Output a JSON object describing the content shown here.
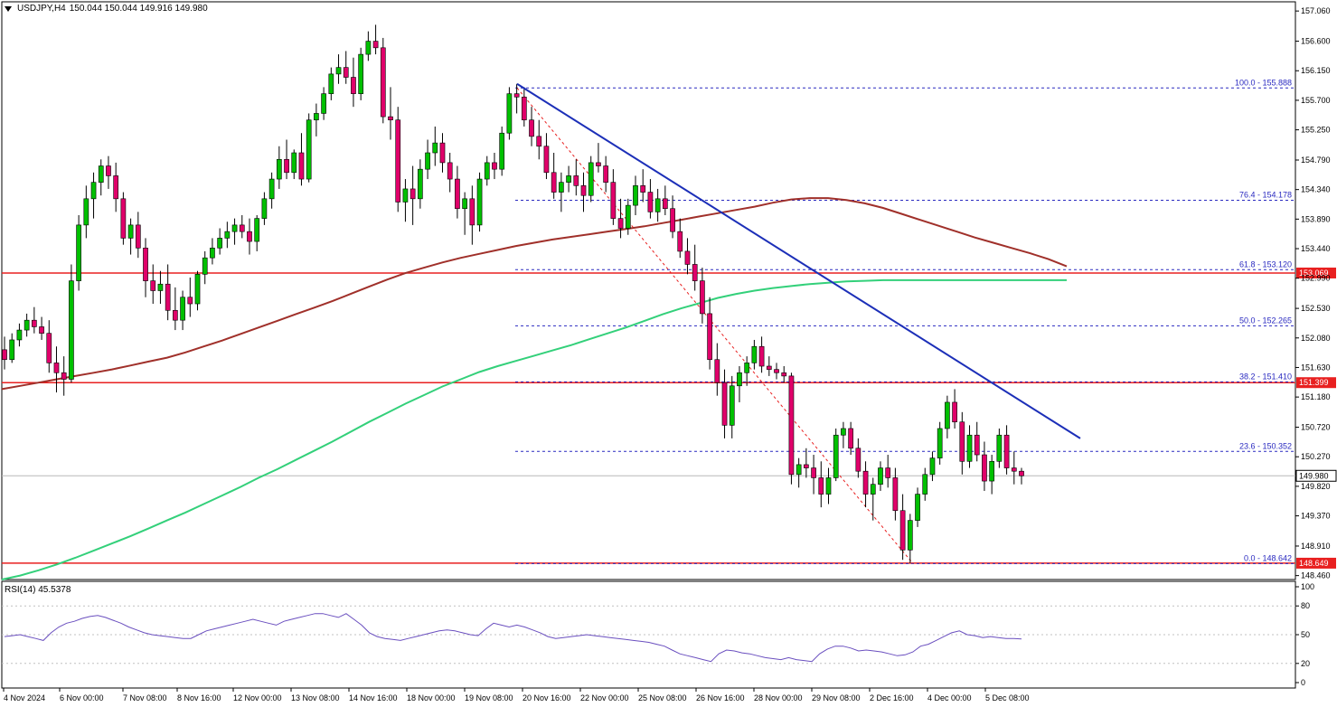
{
  "header": {
    "symbol": "USDJPY,H4",
    "ohlc": "150.044 150.044 149.916 149.980"
  },
  "rsi": {
    "label": "RSI(14) 45.5378",
    "ticks": [
      "100",
      "80",
      "50",
      "20",
      "0"
    ]
  },
  "colors": {
    "bull": "#00c000",
    "bear": "#e0006a",
    "ma_fast": "#a0302a",
    "ma_slow": "#33d07a",
    "trendline": "#1c2fb8",
    "fib": "#2a2ac0",
    "level": "#e82020",
    "rsi": "#6a4fbf"
  },
  "chart_data": {
    "type": "candlestick",
    "y_ticks": [
      "157.060",
      "156.600",
      "156.150",
      "155.700",
      "155.250",
      "154.790",
      "154.340",
      "153.890",
      "153.440",
      "152.990",
      "152.530",
      "152.080",
      "151.630",
      "151.180",
      "150.720",
      "150.270",
      "149.820",
      "149.370",
      "148.910",
      "148.460"
    ],
    "ylim": [
      148.4,
      157.2
    ],
    "x_ticks": [
      "4 Nov 2024",
      "6 Nov 00:00",
      "7 Nov 08:00",
      "8 Nov 16:00",
      "12 Nov 00:00",
      "13 Nov 08:00",
      "14 Nov 16:00",
      "18 Nov 00:00",
      "19 Nov 08:00",
      "20 Nov 16:00",
      "22 Nov 00:00",
      "25 Nov 08:00",
      "26 Nov 16:00",
      "28 Nov 00:00",
      "29 Nov 08:00",
      "2 Dec 16:00",
      "4 Dec 00:00",
      "5 Dec 08:00"
    ],
    "candles": [
      [
        151.9,
        152.1,
        151.6,
        151.75
      ],
      [
        151.75,
        152.15,
        151.7,
        152.05
      ],
      [
        152.05,
        152.3,
        151.95,
        152.2
      ],
      [
        152.2,
        152.45,
        152.1,
        152.35
      ],
      [
        152.35,
        152.55,
        152.15,
        152.25
      ],
      [
        152.25,
        152.4,
        152.05,
        152.15
      ],
      [
        152.15,
        152.35,
        151.55,
        151.7
      ],
      [
        151.7,
        151.95,
        151.25,
        151.55
      ],
      [
        151.55,
        151.8,
        151.2,
        151.45
      ],
      [
        151.45,
        153.2,
        151.4,
        152.95
      ],
      [
        152.95,
        153.95,
        152.8,
        153.8
      ],
      [
        153.8,
        154.4,
        153.6,
        154.2
      ],
      [
        154.2,
        154.6,
        153.9,
        154.45
      ],
      [
        154.45,
        154.8,
        154.25,
        154.7
      ],
      [
        154.7,
        154.85,
        154.35,
        154.55
      ],
      [
        154.55,
        154.75,
        154.0,
        154.2
      ],
      [
        154.2,
        154.3,
        153.5,
        153.6
      ],
      [
        153.6,
        153.9,
        153.35,
        153.8
      ],
      [
        153.8,
        154.0,
        153.3,
        153.45
      ],
      [
        153.45,
        153.6,
        152.7,
        152.95
      ],
      [
        152.95,
        153.2,
        152.6,
        152.8
      ],
      [
        152.8,
        153.1,
        152.6,
        152.9
      ],
      [
        152.9,
        153.2,
        152.35,
        152.5
      ],
      [
        152.5,
        152.85,
        152.2,
        152.35
      ],
      [
        152.35,
        152.8,
        152.2,
        152.7
      ],
      [
        152.7,
        153.0,
        152.4,
        152.6
      ],
      [
        152.6,
        153.1,
        152.5,
        153.05
      ],
      [
        153.05,
        153.4,
        152.9,
        153.3
      ],
      [
        153.3,
        153.6,
        153.2,
        153.45
      ],
      [
        153.45,
        153.75,
        153.35,
        153.6
      ],
      [
        153.6,
        153.85,
        153.45,
        153.7
      ],
      [
        153.7,
        153.9,
        153.5,
        153.8
      ],
      [
        153.8,
        153.95,
        153.6,
        153.7
      ],
      [
        153.7,
        153.9,
        153.35,
        153.55
      ],
      [
        153.55,
        153.95,
        153.4,
        153.9
      ],
      [
        153.9,
        154.3,
        153.8,
        154.2
      ],
      [
        154.2,
        154.6,
        154.05,
        154.5
      ],
      [
        154.5,
        155.0,
        154.35,
        154.8
      ],
      [
        154.8,
        155.1,
        154.5,
        154.6
      ],
      [
        154.6,
        154.95,
        154.5,
        154.9
      ],
      [
        154.9,
        155.2,
        154.4,
        154.5
      ],
      [
        154.5,
        155.5,
        154.45,
        155.4
      ],
      [
        155.4,
        155.65,
        155.15,
        155.5
      ],
      [
        155.5,
        155.9,
        155.4,
        155.8
      ],
      [
        155.8,
        156.2,
        155.7,
        156.1
      ],
      [
        156.1,
        156.4,
        155.95,
        156.2
      ],
      [
        156.2,
        156.45,
        155.95,
        156.05
      ],
      [
        156.05,
        156.35,
        155.6,
        155.8
      ],
      [
        155.8,
        156.5,
        155.7,
        156.4
      ],
      [
        156.4,
        156.75,
        156.3,
        156.6
      ],
      [
        156.6,
        156.85,
        156.4,
        156.5
      ],
      [
        156.5,
        156.65,
        155.35,
        155.45
      ],
      [
        155.45,
        155.9,
        155.1,
        155.4
      ],
      [
        155.4,
        155.6,
        154.0,
        154.15
      ],
      [
        154.15,
        154.5,
        153.85,
        154.35
      ],
      [
        154.35,
        154.7,
        153.8,
        154.2
      ],
      [
        154.2,
        154.8,
        154.05,
        154.65
      ],
      [
        154.65,
        155.1,
        154.5,
        154.9
      ],
      [
        154.9,
        155.3,
        154.7,
        155.05
      ],
      [
        155.05,
        155.2,
        154.6,
        154.75
      ],
      [
        154.75,
        154.9,
        154.3,
        154.5
      ],
      [
        154.5,
        154.7,
        153.9,
        154.05
      ],
      [
        154.05,
        154.3,
        153.65,
        154.2
      ],
      [
        154.2,
        154.4,
        153.5,
        153.8
      ],
      [
        153.8,
        154.6,
        153.7,
        154.5
      ],
      [
        154.5,
        154.85,
        154.4,
        154.75
      ],
      [
        154.75,
        154.9,
        154.5,
        154.65
      ],
      [
        154.65,
        155.3,
        154.55,
        155.2
      ],
      [
        155.2,
        155.9,
        155.1,
        155.8
      ],
      [
        155.8,
        155.95,
        155.5,
        155.75
      ],
      [
        155.75,
        155.9,
        155.3,
        155.4
      ],
      [
        155.4,
        155.6,
        155.0,
        155.15
      ],
      [
        155.15,
        155.4,
        154.8,
        155.0
      ],
      [
        155.0,
        155.2,
        154.5,
        154.6
      ],
      [
        154.6,
        154.9,
        154.2,
        154.3
      ],
      [
        154.3,
        154.6,
        154.0,
        154.45
      ],
      [
        154.45,
        154.7,
        154.3,
        154.55
      ],
      [
        154.55,
        154.8,
        154.25,
        154.4
      ],
      [
        154.4,
        154.6,
        154.0,
        154.25
      ],
      [
        154.25,
        154.85,
        154.15,
        154.75
      ],
      [
        154.75,
        155.05,
        154.6,
        154.7
      ],
      [
        154.7,
        154.85,
        154.3,
        154.45
      ],
      [
        154.45,
        154.65,
        153.8,
        153.9
      ],
      [
        153.9,
        154.2,
        153.6,
        153.75
      ],
      [
        153.75,
        154.2,
        153.65,
        154.1
      ],
      [
        154.1,
        154.55,
        153.95,
        154.4
      ],
      [
        154.4,
        154.65,
        154.15,
        154.3
      ],
      [
        154.3,
        154.5,
        153.9,
        154.0
      ],
      [
        154.0,
        154.35,
        153.85,
        154.2
      ],
      [
        154.2,
        154.4,
        153.95,
        154.05
      ],
      [
        154.05,
        154.25,
        153.6,
        153.7
      ],
      [
        153.7,
        153.9,
        153.3,
        153.4
      ],
      [
        153.4,
        153.6,
        153.05,
        153.2
      ],
      [
        153.2,
        153.5,
        152.8,
        152.95
      ],
      [
        152.95,
        153.15,
        152.3,
        152.45
      ],
      [
        152.45,
        152.7,
        151.6,
        151.75
      ],
      [
        151.75,
        152.0,
        151.2,
        151.4
      ],
      [
        151.4,
        151.6,
        150.55,
        150.75
      ],
      [
        150.75,
        151.5,
        150.55,
        151.35
      ],
      [
        151.35,
        151.65,
        151.1,
        151.55
      ],
      [
        151.55,
        151.8,
        151.35,
        151.7
      ],
      [
        151.7,
        152.05,
        151.6,
        151.95
      ],
      [
        151.95,
        152.1,
        151.55,
        151.65
      ],
      [
        151.65,
        151.8,
        151.5,
        151.6
      ],
      [
        151.6,
        151.7,
        151.45,
        151.55
      ],
      [
        151.55,
        151.65,
        151.4,
        151.5
      ],
      [
        151.5,
        151.55,
        149.85,
        150.0
      ],
      [
        150.0,
        150.25,
        149.8,
        150.15
      ],
      [
        150.15,
        150.4,
        149.95,
        150.1
      ],
      [
        150.1,
        150.3,
        149.7,
        149.95
      ],
      [
        149.95,
        150.2,
        149.5,
        149.7
      ],
      [
        149.7,
        150.1,
        149.55,
        149.95
      ],
      [
        149.95,
        150.7,
        149.9,
        150.6
      ],
      [
        150.6,
        150.8,
        150.4,
        150.7
      ],
      [
        150.7,
        150.8,
        150.3,
        150.4
      ],
      [
        150.4,
        150.55,
        149.95,
        150.05
      ],
      [
        150.05,
        150.2,
        149.5,
        149.7
      ],
      [
        149.7,
        149.95,
        149.3,
        149.85
      ],
      [
        149.85,
        150.2,
        149.75,
        150.1
      ],
      [
        150.1,
        150.3,
        149.8,
        149.95
      ],
      [
        149.95,
        150.1,
        149.3,
        149.45
      ],
      [
        149.45,
        149.7,
        148.7,
        148.85
      ],
      [
        148.85,
        149.4,
        148.65,
        149.3
      ],
      [
        149.3,
        149.8,
        149.2,
        149.7
      ],
      [
        149.7,
        150.1,
        149.6,
        150.0
      ],
      [
        150.0,
        150.35,
        149.9,
        150.25
      ],
      [
        150.25,
        150.8,
        150.15,
        150.7
      ],
      [
        150.7,
        151.2,
        150.55,
        151.1
      ],
      [
        151.1,
        151.3,
        150.7,
        150.8
      ],
      [
        150.8,
        150.95,
        150.0,
        150.2
      ],
      [
        150.2,
        150.75,
        150.1,
        150.6
      ],
      [
        150.6,
        150.8,
        150.2,
        150.3
      ],
      [
        150.3,
        150.5,
        149.75,
        149.9
      ],
      [
        149.9,
        150.3,
        149.7,
        150.2
      ],
      [
        150.2,
        150.7,
        150.1,
        150.6
      ],
      [
        150.6,
        150.75,
        150.0,
        150.1
      ],
      [
        150.1,
        150.35,
        149.85,
        150.05
      ],
      [
        150.05,
        150.1,
        149.85,
        149.98
      ]
    ],
    "ma_fast": {
      "name": "",
      "values": [
        151.3,
        151.35,
        151.4,
        151.45,
        151.5,
        151.55,
        151.6,
        151.66,
        151.72,
        151.78,
        151.86,
        151.95,
        152.04,
        152.14,
        152.24,
        152.34,
        152.44,
        152.54,
        152.64,
        152.75,
        152.86,
        152.97,
        153.07,
        153.15,
        153.23,
        153.3,
        153.36,
        153.42,
        153.48,
        153.53,
        153.58,
        153.62,
        153.66,
        153.7,
        153.74,
        153.78,
        153.83,
        153.88,
        153.93,
        153.98,
        154.03,
        154.08,
        154.14,
        154.19,
        154.21,
        154.21,
        154.18,
        154.13,
        154.06,
        153.97,
        153.88,
        153.79,
        153.7,
        153.61,
        153.53,
        153.45,
        153.37,
        153.28,
        153.17
      ]
    },
    "ma_slow": {
      "name": "",
      "values": [
        148.4,
        148.46,
        148.54,
        148.63,
        148.73,
        148.84,
        148.95,
        149.06,
        149.18,
        149.3,
        149.42,
        149.55,
        149.68,
        149.81,
        149.95,
        150.08,
        150.22,
        150.36,
        150.5,
        150.65,
        150.8,
        150.94,
        151.08,
        151.21,
        151.34,
        151.45,
        151.56,
        151.65,
        151.73,
        151.81,
        151.89,
        151.97,
        152.06,
        152.15,
        152.24,
        152.34,
        152.44,
        152.53,
        152.61,
        152.69,
        152.75,
        152.8,
        152.84,
        152.87,
        152.9,
        152.92,
        152.94,
        152.95,
        152.96,
        152.96,
        152.96,
        152.96,
        152.96,
        152.96,
        152.96,
        152.96,
        152.96,
        152.96,
        152.96
      ]
    },
    "trendline": {
      "start": 155.95,
      "end": 150.55
    },
    "fibonacci": [
      {
        "level": "100.0",
        "price": "155.888",
        "value": 155.888
      },
      {
        "level": "76.4",
        "price": "154.178",
        "value": 154.178
      },
      {
        "level": "61.8",
        "price": "153.120",
        "value": 153.12
      },
      {
        "level": "50.0",
        "price": "152.265",
        "value": 152.265
      },
      {
        "level": "38.2",
        "price": "151.410",
        "value": 151.41
      },
      {
        "level": "23.6",
        "price": "150.352",
        "value": 150.352
      },
      {
        "level": "0.0",
        "price": "148.642",
        "value": 148.642
      }
    ],
    "horizontal_levels": [
      {
        "label": "153.069",
        "value": 153.069
      },
      {
        "label": "151.399",
        "value": 151.399
      },
      {
        "label": "148.649",
        "value": 148.649
      }
    ],
    "current_price": {
      "label": "149.980",
      "value": 149.98
    },
    "rsi_values": [
      48,
      49,
      50,
      48,
      46,
      44,
      52,
      58,
      62,
      64,
      67,
      69,
      70,
      68,
      65,
      62,
      58,
      55,
      52,
      50,
      49,
      48,
      47,
      46,
      46,
      50,
      54,
      56,
      58,
      60,
      62,
      64,
      66,
      64,
      62,
      60,
      64,
      66,
      68,
      70,
      72,
      72,
      70,
      68,
      72,
      66,
      60,
      52,
      48,
      46,
      45,
      44,
      46,
      48,
      50,
      52,
      54,
      55,
      54,
      52,
      50,
      49,
      56,
      62,
      60,
      58,
      60,
      58,
      55,
      52,
      48,
      46,
      47,
      48,
      49,
      50,
      49,
      48,
      47,
      46,
      45,
      44,
      43,
      42,
      40,
      38,
      34,
      30,
      28,
      26,
      24,
      22,
      30,
      34,
      33,
      31,
      30,
      28,
      26,
      25,
      24,
      26,
      24,
      23,
      22,
      30,
      35,
      38,
      38,
      36,
      33,
      34,
      33,
      32,
      30,
      28,
      29,
      32,
      38,
      40,
      44,
      48,
      52,
      54,
      50,
      49,
      47,
      48,
      47,
      46,
      46,
      45.5
    ]
  }
}
